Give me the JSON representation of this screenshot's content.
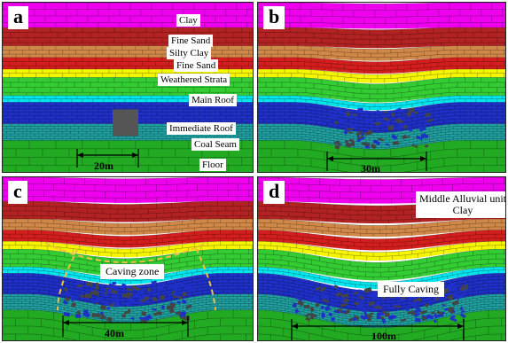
{
  "colors": {
    "clay": "#ee00ee",
    "fine_sand_dark": "#b22222",
    "silty_clay": "#d08848",
    "fine_sand_red": "#d41e1e",
    "yellow": "#f5f500",
    "weathered_green": "#33cc33",
    "main_roof_cyan": "#00e5ee",
    "immediate_roof_blue": "#1f30c8",
    "coal_teal": "#20a0a0",
    "floor_green": "#22aa22",
    "caving_zone_line": "#f0c040"
  },
  "panels": [
    {
      "id": "a",
      "label": "a",
      "layer_labels": [
        "Clay",
        "Fine Sand",
        "Silty Clay",
        "Fine Sand",
        "Weathered Strata",
        "Main Roof",
        "Immediate Roof",
        "Coal Seam",
        "Floor"
      ],
      "dimension": "20m"
    },
    {
      "id": "b",
      "label": "b",
      "dimension": "30m"
    },
    {
      "id": "c",
      "label": "c",
      "callout": "Caving zone",
      "dimension": "40m"
    },
    {
      "id": "d",
      "label": "d",
      "callout_top_line1": "Middle Alluvial unit",
      "callout_top_line2": "Clay",
      "callout": "Fully Caving",
      "dimension": "100m"
    }
  ]
}
